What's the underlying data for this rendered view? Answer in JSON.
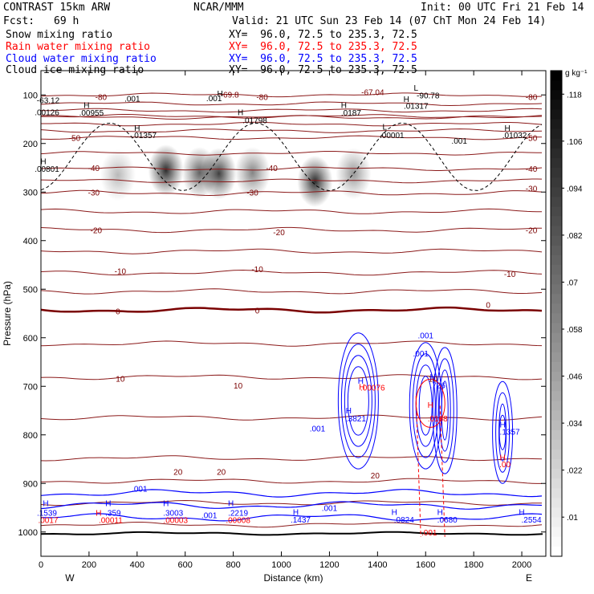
{
  "header": {
    "model": "CONTRAST 15km ARW",
    "org": "NCAR/MMM",
    "init": "Init: 00 UTC Fri 21 Feb 14",
    "fcst_label": "Fcst:",
    "fcst_value": "69 h",
    "valid": "Valid: 21 UTC Sun 23 Feb 14 (07 ChT Mon 24 Feb 14)",
    "fields": [
      {
        "name": "Snow mixing ratio",
        "xy": "XY=  96.0, 72.5 to 235.3, 72.5",
        "color": "#000000"
      },
      {
        "name": "Rain water mixing ratio",
        "xy": "XY=  96.0, 72.5 to 235.3, 72.5",
        "color": "#ff0000"
      },
      {
        "name": "Cloud water mixing ratio",
        "xy": "XY=  96.0, 72.5 to 235.3, 72.5",
        "color": "#0000ff"
      },
      {
        "name": "Cloud ice mixing ratio",
        "xy": "XY=  96.0, 72.5 to 235.3, 72.5",
        "color": "#000000"
      }
    ]
  },
  "chart_data": {
    "type": "heatmap",
    "xlabel": "Distance (km)",
    "ylabel": "Pressure (hPa)",
    "xlim": [
      0,
      2100
    ],
    "ylim": [
      1050,
      50
    ],
    "x_ticks": [
      0,
      200,
      400,
      600,
      800,
      1000,
      1200,
      1400,
      1600,
      1800,
      2000
    ],
    "y_ticks": [
      100,
      200,
      300,
      400,
      500,
      600,
      700,
      800,
      900,
      1000
    ],
    "end_labels": {
      "left": "W",
      "right": "E"
    },
    "colorbar": {
      "unit": "g kg⁻¹",
      "ticks": [
        ".118",
        ".106",
        ".094",
        ".082",
        ".07",
        ".058",
        ".046",
        ".034",
        ".022",
        ".01"
      ],
      "tick_values": [
        0.118,
        0.106,
        0.094,
        0.082,
        0.07,
        0.058,
        0.046,
        0.034,
        0.022,
        0.01
      ],
      "range": [
        0.0,
        0.124
      ]
    },
    "temperature_isotherms": [
      {
        "value": -80,
        "p": 100
      },
      {
        "value": -50,
        "p": 188
      },
      {
        "value": -40,
        "p": 252
      },
      {
        "value": -30,
        "p": 302
      },
      {
        "value": -20,
        "p": 378
      },
      {
        "value": -10,
        "p": 466
      },
      {
        "value": 0,
        "p": 543
      },
      {
        "value": 10,
        "p": 681
      },
      {
        "value": 20,
        "p": 848
      }
    ],
    "isotherm_labels": [
      {
        "text": "-80",
        "x": 250,
        "p": 104
      },
      {
        "text": "-80",
        "x": 920,
        "p": 104
      },
      {
        "text": "-80",
        "x": 2040,
        "p": 104
      },
      {
        "text": "-69.8",
        "x": 785,
        "p": 99
      },
      {
        "text": "-67.04",
        "x": 1380,
        "p": 94
      },
      {
        "text": "-50",
        "x": 140,
        "p": 188
      },
      {
        "text": "-50",
        "x": 2040,
        "p": 188
      },
      {
        "text": "-40",
        "x": 220,
        "p": 250
      },
      {
        "text": "-40",
        "x": 960,
        "p": 250
      },
      {
        "text": "-40",
        "x": 2040,
        "p": 252
      },
      {
        "text": "-30",
        "x": 220,
        "p": 300
      },
      {
        "text": "-30",
        "x": 880,
        "p": 300
      },
      {
        "text": "-30",
        "x": 2040,
        "p": 292
      },
      {
        "text": "-20",
        "x": 230,
        "p": 378
      },
      {
        "text": "-20",
        "x": 990,
        "p": 382
      },
      {
        "text": "-20",
        "x": 2040,
        "p": 378
      },
      {
        "text": "-10",
        "x": 330,
        "p": 462
      },
      {
        "text": "-10",
        "x": 900,
        "p": 458
      },
      {
        "text": "-10",
        "x": 1950,
        "p": 468
      },
      {
        "text": "0",
        "x": 320,
        "p": 545
      },
      {
        "text": "0",
        "x": 900,
        "p": 543
      },
      {
        "text": "0",
        "x": 1860,
        "p": 532
      },
      {
        "text": "10",
        "x": 330,
        "p": 684
      },
      {
        "text": "10",
        "x": 820,
        "p": 698
      },
      {
        "text": "10",
        "x": 1630,
        "p": 684
      },
      {
        "text": "20",
        "x": 570,
        "p": 876
      },
      {
        "text": "20",
        "x": 750,
        "p": 876
      },
      {
        "text": "20",
        "x": 1390,
        "p": 883
      }
    ],
    "snow_blobs": [
      {
        "x": 520,
        "p": 255,
        "max": 0.12
      },
      {
        "x": 660,
        "p": 260,
        "max": 0.09
      },
      {
        "x": 740,
        "p": 262,
        "max": 0.11
      },
      {
        "x": 880,
        "p": 260,
        "max": 0.07
      },
      {
        "x": 1140,
        "p": 278,
        "max": 0.12
      },
      {
        "x": 1300,
        "p": 262,
        "max": 0.06
      },
      {
        "x": 320,
        "p": 265,
        "max": 0.04
      }
    ],
    "text_labels": [
      {
        "text": "-63.12",
        "x": 30,
        "p": 110,
        "color": "#000000"
      },
      {
        "text": ".00126",
        "x": 25,
        "p": 135,
        "color": "#000000"
      },
      {
        "text": "H",
        "x": 190,
        "p": 120,
        "color": "#000000"
      },
      {
        "text": ".00955",
        "x": 210,
        "p": 136,
        "color": "#000000"
      },
      {
        "text": ".001",
        "x": 380,
        "p": 107,
        "color": "#000000"
      },
      {
        "text": ".001",
        "x": 720,
        "p": 106,
        "color": "#000000"
      },
      {
        "text": "H",
        "x": 745,
        "p": 96,
        "color": "#000000"
      },
      {
        "text": "H",
        "x": 830,
        "p": 135,
        "color": "#000000"
      },
      {
        "text": ".01798",
        "x": 890,
        "p": 152,
        "color": "#000000"
      },
      {
        "text": "H",
        "x": 1260,
        "p": 120,
        "color": "#000000"
      },
      {
        "text": ".0187",
        "x": 1290,
        "p": 136,
        "color": "#000000"
      },
      {
        "text": "H",
        "x": 1520,
        "p": 108,
        "color": "#000000"
      },
      {
        "text": ".01317",
        "x": 1560,
        "p": 122,
        "color": "#000000"
      },
      {
        "text": "L",
        "x": 1560,
        "p": 85,
        "color": "#000000"
      },
      {
        "text": "-90.78",
        "x": 1610,
        "p": 100,
        "color": "#000000"
      },
      {
        "text": "H",
        "x": 400,
        "p": 167,
        "color": "#000000"
      },
      {
        "text": ".01357",
        "x": 430,
        "p": 182,
        "color": "#000000"
      },
      {
        "text": "L",
        "x": 1430,
        "p": 165,
        "color": "#000000"
      },
      {
        "text": ".00001",
        "x": 1460,
        "p": 182,
        "color": "#000000"
      },
      {
        "text": ".001",
        "x": 1740,
        "p": 194,
        "color": "#000000"
      },
      {
        "text": "H",
        "x": 1940,
        "p": 167,
        "color": "#000000"
      },
      {
        "text": ".01032",
        "x": 1970,
        "p": 182,
        "color": "#000000"
      },
      {
        "text": "H",
        "x": 10,
        "p": 236,
        "color": "#000000"
      },
      {
        "text": ".00801",
        "x": 25,
        "p": 252,
        "color": "#000000"
      },
      {
        "text": ".001",
        "x": 1600,
        "p": 595,
        "color": "#0000ff"
      },
      {
        "text": ".001",
        "x": 1580,
        "p": 632,
        "color": "#0000ff"
      },
      {
        "text": "H",
        "x": 1330,
        "p": 688,
        "color": "#0000ff"
      },
      {
        "text": "H",
        "x": 1335,
        "p": 700,
        "color": "#ff0000"
      },
      {
        "text": ".00076",
        "x": 1380,
        "p": 702,
        "color": "#ff0000"
      },
      {
        "text": "H",
        "x": 1280,
        "p": 749,
        "color": "#0000ff"
      },
      {
        "text": ".3821",
        "x": 1310,
        "p": 766,
        "color": "#0000ff"
      },
      {
        "text": ".001",
        "x": 1150,
        "p": 786,
        "color": "#0000ff"
      },
      {
        "text": "H",
        "x": 1630,
        "p": 680,
        "color": "#0000ff"
      },
      {
        "text": ".726",
        "x": 1650,
        "p": 697,
        "color": "#0000ff"
      },
      {
        "text": "H",
        "x": 1620,
        "p": 738,
        "color": "#ff0000"
      },
      {
        "text": ".0168",
        "x": 1650,
        "p": 766,
        "color": "#ff0000"
      },
      {
        "text": "H",
        "x": 1920,
        "p": 778,
        "color": "#0000ff"
      },
      {
        "text": ".1357",
        "x": 1950,
        "p": 793,
        "color": "#0000ff"
      },
      {
        "text": "H",
        "x": 1920,
        "p": 846,
        "color": "#ff0000"
      },
      {
        "text": ".00",
        "x": 1930,
        "p": 860,
        "color": "#ff0000"
      },
      {
        "text": ".001",
        "x": 410,
        "p": 910,
        "color": "#0000ff"
      },
      {
        "text": "H",
        "x": 20,
        "p": 940,
        "color": "#0000ff"
      },
      {
        "text": ".1539",
        "x": 25,
        "p": 960,
        "color": "#0000ff"
      },
      {
        "text": ".0017",
        "x": 30,
        "p": 975,
        "color": "#ff0000"
      },
      {
        "text": "H",
        "x": 280,
        "p": 940,
        "color": "#0000ff"
      },
      {
        "text": "H",
        "x": 240,
        "p": 960,
        "color": "#ff0000"
      },
      {
        "text": ".359",
        "x": 300,
        "p": 960,
        "color": "#0000ff"
      },
      {
        "text": ".00011",
        "x": 290,
        "p": 975,
        "color": "#ff0000"
      },
      {
        "text": "H",
        "x": 520,
        "p": 940,
        "color": "#0000ff"
      },
      {
        "text": ".3003",
        "x": 550,
        "p": 960,
        "color": "#0000ff"
      },
      {
        "text": ".00003",
        "x": 560,
        "p": 975,
        "color": "#ff0000"
      },
      {
        "text": ".001",
        "x": 700,
        "p": 965,
        "color": "#0000ff"
      },
      {
        "text": "H",
        "x": 790,
        "p": 940,
        "color": "#0000ff"
      },
      {
        "text": ".2219",
        "x": 820,
        "p": 960,
        "color": "#0000ff"
      },
      {
        "text": ".00008",
        "x": 820,
        "p": 975,
        "color": "#ff0000"
      },
      {
        "text": "H",
        "x": 1060,
        "p": 958,
        "color": "#0000ff"
      },
      {
        "text": ".1437",
        "x": 1080,
        "p": 974,
        "color": "#0000ff"
      },
      {
        "text": ".001",
        "x": 1200,
        "p": 950,
        "color": "#0000ff"
      },
      {
        "text": "H",
        "x": 1470,
        "p": 958,
        "color": "#0000ff"
      },
      {
        "text": ".0824",
        "x": 1510,
        "p": 974,
        "color": "#0000ff"
      },
      {
        "text": "H",
        "x": 1660,
        "p": 958,
        "color": "#0000ff"
      },
      {
        "text": ".0680",
        "x": 1690,
        "p": 974,
        "color": "#0000ff"
      },
      {
        "text": ".001",
        "x": 1615,
        "p": 1000,
        "color": "#ff0000"
      },
      {
        "text": "H",
        "x": 2000,
        "p": 958,
        "color": "#0000ff"
      },
      {
        "text": ".2554",
        "x": 2040,
        "p": 974,
        "color": "#0000ff"
      }
    ]
  }
}
